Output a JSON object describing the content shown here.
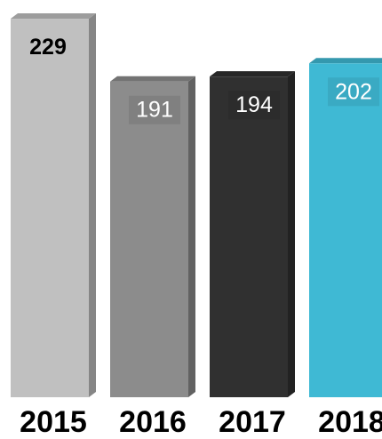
{
  "chart_data": {
    "type": "bar",
    "categories": [
      "2015",
      "2016",
      "2017",
      "2018"
    ],
    "values": [
      229,
      191,
      194,
      202
    ],
    "data_labels": [
      "229",
      "191",
      "194",
      "202"
    ],
    "bar_colors": [
      "#c0c0c0",
      "#8c8c8c",
      "#303030",
      "#3fb9d4"
    ],
    "label_colors": [
      "#000000",
      "#ffffff",
      "#ffffff",
      "#ffffff"
    ],
    "label_backgrounds": [
      "",
      "#8c8c8c",
      "#303030",
      "#3fb9d4"
    ],
    "title": "",
    "xlabel": "",
    "ylabel": "",
    "grid": false,
    "legend": "none",
    "style": "3d-bar"
  }
}
